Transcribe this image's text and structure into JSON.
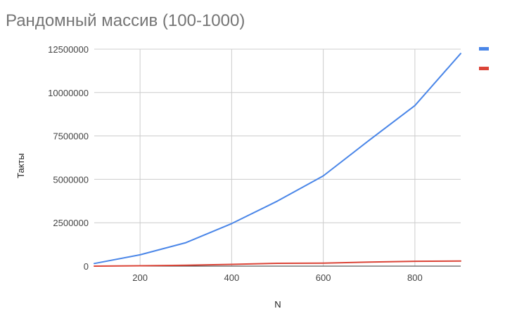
{
  "chart_data": {
    "type": "line",
    "title": "Рандомный массив (100-1000)",
    "xlabel": "N",
    "ylabel": "Такты",
    "xlim": [
      100,
      900
    ],
    "ylim": [
      0,
      12500000
    ],
    "x_ticks": [
      200,
      400,
      600,
      800
    ],
    "y_ticks": [
      0,
      2500000,
      5000000,
      7500000,
      10000000,
      12500000
    ],
    "x_tick_labels": [
      "200",
      "400",
      "600",
      "800"
    ],
    "y_tick_labels": [
      "0",
      "2500000",
      "5000000",
      "7500000",
      "10000000",
      "12500000"
    ],
    "grid": true,
    "legend_position": "right",
    "series": [
      {
        "color": "#4a86e8",
        "x": [
          100,
          200,
          300,
          400,
          500,
          600,
          700,
          800,
          900
        ],
        "y": [
          150000,
          650000,
          1350000,
          2450000,
          3750000,
          5200000,
          7250000,
          9250000,
          12250000
        ]
      },
      {
        "color": "#db4437",
        "x": [
          100,
          200,
          300,
          400,
          500,
          600,
          700,
          800,
          900
        ],
        "y": [
          0,
          20000,
          50000,
          100000,
          160000,
          170000,
          230000,
          280000,
          290000
        ]
      }
    ]
  }
}
